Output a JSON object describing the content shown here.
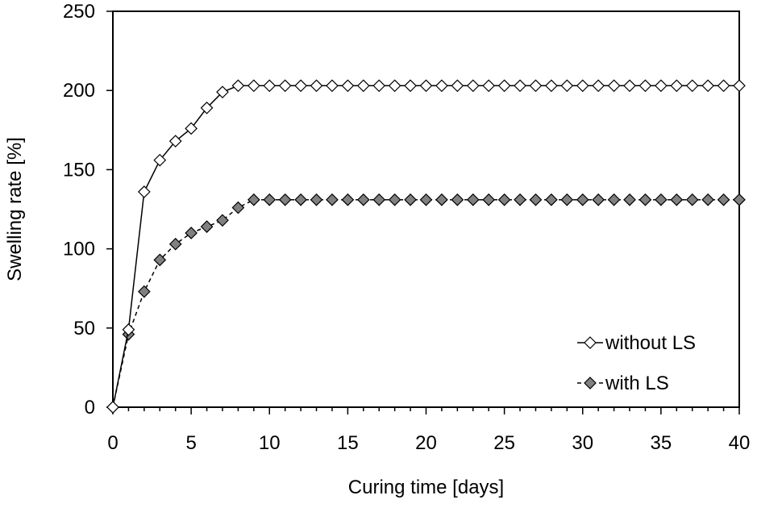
{
  "chart_data": {
    "type": "line",
    "title": "",
    "xlabel": "Curing time [days]",
    "ylabel": "Swelling rate [%]",
    "xlim": [
      0,
      40
    ],
    "ylim": [
      0,
      250
    ],
    "xticks": [
      0,
      5,
      10,
      15,
      20,
      25,
      30,
      35,
      40
    ],
    "yticks": [
      0,
      50,
      100,
      150,
      200,
      250
    ],
    "grid": false,
    "legend_position": "bottom-right",
    "series": [
      {
        "name": "without LS",
        "line_style": "solid",
        "marker": "open-diamond",
        "marker_fill": "#ffffff",
        "x": [
          0,
          1,
          2,
          3,
          4,
          5,
          6,
          7,
          8,
          9,
          10,
          11,
          12,
          13,
          14,
          15,
          16,
          17,
          18,
          19,
          20,
          21,
          22,
          23,
          24,
          25,
          26,
          27,
          28,
          29,
          30,
          31,
          32,
          33,
          34,
          35,
          36,
          37,
          38,
          39,
          40
        ],
        "values": [
          0,
          49,
          136,
          156,
          168,
          176,
          189,
          199,
          203,
          203,
          203,
          203,
          203,
          203,
          203,
          203,
          203,
          203,
          203,
          203,
          203,
          203,
          203,
          203,
          203,
          203,
          203,
          203,
          203,
          203,
          203,
          203,
          203,
          203,
          203,
          203,
          203,
          203,
          203,
          203,
          203
        ]
      },
      {
        "name": "with LS",
        "line_style": "dashed",
        "marker": "filled-diamond",
        "marker_fill": "#808080",
        "x": [
          0,
          1,
          2,
          3,
          4,
          5,
          6,
          7,
          8,
          9,
          10,
          11,
          12,
          13,
          14,
          15,
          16,
          17,
          18,
          19,
          20,
          21,
          22,
          23,
          24,
          25,
          26,
          27,
          28,
          29,
          30,
          31,
          32,
          33,
          34,
          35,
          36,
          37,
          38,
          39,
          40
        ],
        "values": [
          0,
          46,
          73,
          93,
          103,
          110,
          114,
          118,
          126,
          131,
          131,
          131,
          131,
          131,
          131,
          131,
          131,
          131,
          131,
          131,
          131,
          131,
          131,
          131,
          131,
          131,
          131,
          131,
          131,
          131,
          131,
          131,
          131,
          131,
          131,
          131,
          131,
          131,
          131,
          131,
          131
        ]
      }
    ]
  }
}
